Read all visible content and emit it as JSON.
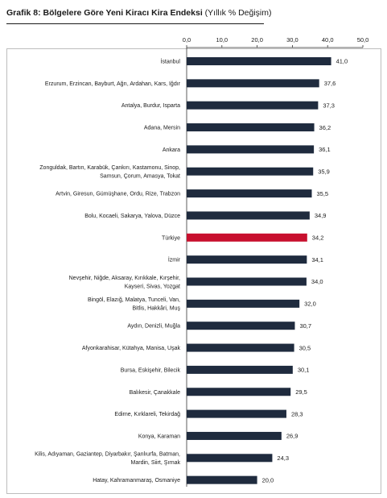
{
  "title": {
    "bold": "Grafik 8: Bölgelere Göre Yeni Kiracı Kira Endeksi",
    "normal": "(Yıllık % Değişim)"
  },
  "chart_data": {
    "type": "bar",
    "orientation": "horizontal",
    "title": "Grafik 8: Bölgelere Göre Yeni Kiracı Kira Endeksi (Yıllık % Değişim)",
    "xlim": [
      0,
      50
    ],
    "xticks": [
      "0,0",
      "10,0",
      "20,0",
      "30,0",
      "40,0",
      "50,0"
    ],
    "xtick_values": [
      0,
      10,
      20,
      30,
      40,
      50
    ],
    "axis_position": "top",
    "grid": false,
    "colors": {
      "default": "#1f2b3e",
      "highlight": "#c8102e"
    },
    "categories": [
      [
        "İstanbul"
      ],
      [
        "Erzurum, Erzincan, Bayburt, Ağrı, Ardahan, Kars, Iğdır"
      ],
      [
        "Antalya, Burdur, Isparta"
      ],
      [
        "Adana, Mersin"
      ],
      [
        "Ankara"
      ],
      [
        "Zonguldak, Bartın, Karabük, Çankırı, Kastamonu, Sinop,",
        "Samsun, Çorum, Amasya, Tokat"
      ],
      [
        "Artvin, Giresun, Gümüşhane, Ordu, Rize, Trabzon"
      ],
      [
        "Bolu, Kocaeli, Sakarya, Yalova, Düzce"
      ],
      [
        "Türkiye"
      ],
      [
        "İzmir"
      ],
      [
        "Nevşehir, Niğde, Aksaray, Kırıkkale, Kırşehir,",
        "Kayseri, Sivas, Yozgat"
      ],
      [
        "Bingöl, Elazığ, Malatya, Tunceli, Van,",
        "Bitlis, Hakkâri, Muş"
      ],
      [
        "Aydın, Denizli, Muğla"
      ],
      [
        "Afyonkarahisar, Kütahya, Manisa, Uşak"
      ],
      [
        "Bursa, Eskişehir, Bilecik"
      ],
      [
        "Balıkesir, Çanakkale"
      ],
      [
        "Edirne, Kırklareli, Tekirdağ"
      ],
      [
        "Konya, Karaman"
      ],
      [
        "Kilis, Adıyaman, Gaziantep, Diyarbakır, Şanlıurfa, Batman,",
        "Mardin, Siirt, Şırnak"
      ],
      [
        "Hatay, Kahramanmaraş, Osmaniye"
      ]
    ],
    "values": [
      41.0,
      37.6,
      37.3,
      36.2,
      36.1,
      35.9,
      35.5,
      34.9,
      34.2,
      34.1,
      34.0,
      32.0,
      30.7,
      30.5,
      30.1,
      29.5,
      28.3,
      26.9,
      24.3,
      20.0
    ],
    "value_labels": [
      "41,0",
      "37,6",
      "37,3",
      "36,2",
      "36,1",
      "35,9",
      "35,5",
      "34,9",
      "34,2",
      "34,1",
      "34,0",
      "32,0",
      "30,7",
      "30,5",
      "30,1",
      "29,5",
      "28,3",
      "26,9",
      "24,3",
      "20,0"
    ],
    "highlight_index": 8
  }
}
